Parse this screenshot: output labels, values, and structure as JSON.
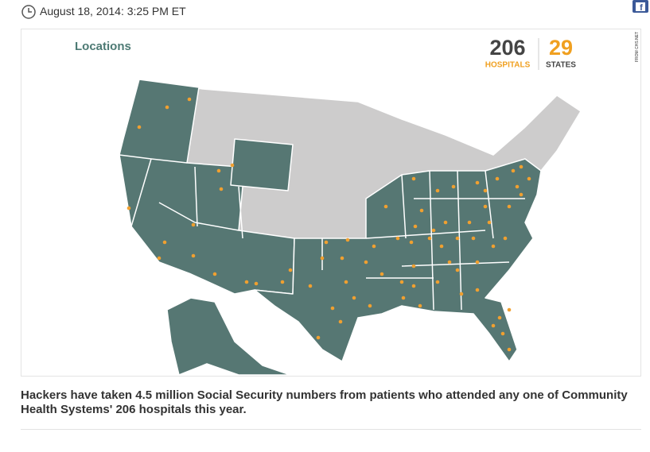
{
  "header": {
    "timestamp": "August 18, 2014: 3:25 PM ET"
  },
  "map": {
    "title": "Locations",
    "hospitals_count": 206,
    "hospitals_label": "HOSPITALS",
    "states_count": 29,
    "states_label": "STATES",
    "credit": "FROM CHS.NET"
  },
  "caption": "Hackers have taken 4.5 million Social Security numbers from patients who attended any one of Community Health Systems' 206 hospitals this year."
}
